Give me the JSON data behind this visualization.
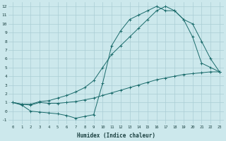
{
  "xlabel": "Humidex (Indice chaleur)",
  "bg_color": "#cce8ec",
  "grid_color": "#aacdd4",
  "line_color": "#1a6b6b",
  "xlim": [
    -0.5,
    23.5
  ],
  "ylim": [
    -1.5,
    12.5
  ],
  "curve1_x": [
    0,
    1,
    2,
    3,
    4,
    5,
    6,
    7,
    8,
    9,
    10,
    11,
    12,
    13,
    14,
    15,
    16,
    17,
    18,
    19,
    20,
    21,
    22,
    23
  ],
  "curve1_y": [
    1.0,
    0.8,
    0.7,
    1.0,
    0.9,
    0.9,
    1.0,
    1.1,
    1.3,
    1.5,
    1.8,
    2.1,
    2.4,
    2.7,
    3.0,
    3.3,
    3.6,
    3.8,
    4.0,
    4.2,
    4.3,
    4.4,
    4.5,
    4.5
  ],
  "curve2_x": [
    0,
    1,
    2,
    3,
    4,
    5,
    6,
    7,
    8,
    9,
    10,
    11,
    12,
    13,
    14,
    15,
    16,
    17,
    18,
    19,
    20,
    21,
    22,
    23
  ],
  "curve2_y": [
    1.0,
    0.7,
    0.0,
    -0.1,
    -0.2,
    -0.3,
    -0.5,
    -0.8,
    -0.6,
    -0.4,
    3.2,
    7.5,
    9.2,
    10.5,
    11.0,
    11.5,
    12.0,
    11.5,
    11.5,
    10.5,
    8.5,
    5.5,
    5.0,
    4.5
  ],
  "curve3_x": [
    0,
    1,
    2,
    3,
    4,
    5,
    6,
    7,
    8,
    9,
    10,
    11,
    12,
    13,
    14,
    15,
    16,
    17,
    18,
    19,
    20,
    21,
    22,
    23
  ],
  "curve3_y": [
    1.0,
    0.8,
    0.8,
    1.1,
    1.2,
    1.5,
    1.8,
    2.2,
    2.7,
    3.5,
    5.0,
    6.5,
    7.5,
    8.5,
    9.5,
    10.5,
    11.5,
    12.0,
    11.5,
    10.5,
    10.0,
    8.0,
    6.0,
    4.5
  ]
}
